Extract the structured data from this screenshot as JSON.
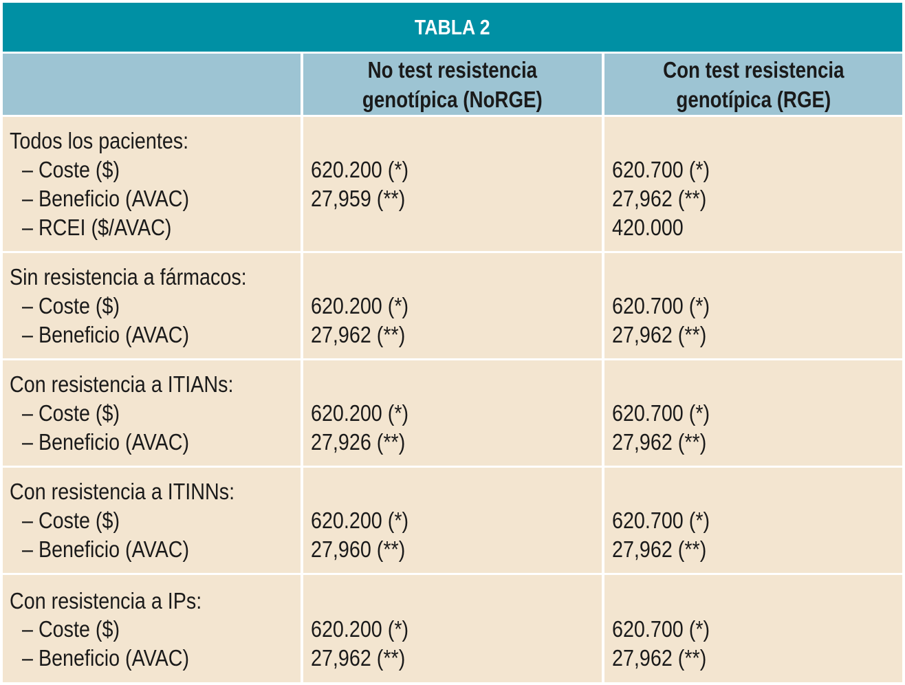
{
  "table": {
    "title": "TABLA 2",
    "headers": {
      "col0": "",
      "col1_line1": "No test resistencia",
      "col1_line2": "genotípica (NoRGE)",
      "col2_line1": "Con test resistencia",
      "col2_line2": "genotípica (RGE)"
    },
    "groups": [
      {
        "label": "Todos los pacientes:",
        "rows": [
          {
            "metric": "– Coste ($)",
            "norge": "620.200 (*)",
            "rge": "620.700 (*)"
          },
          {
            "metric": "– Beneficio (AVAC)",
            "norge": "27,959 (**)",
            "rge": "27,962 (**)"
          },
          {
            "metric": "– RCEI ($/AVAC)",
            "norge": "",
            "rge": "420.000"
          }
        ]
      },
      {
        "label": "Sin resistencia a fármacos:",
        "rows": [
          {
            "metric": "– Coste ($)",
            "norge": "620.200 (*)",
            "rge": "620.700 (*)"
          },
          {
            "metric": "– Beneficio (AVAC)",
            "norge": "27,962 (**)",
            "rge": "27,962 (**)"
          }
        ]
      },
      {
        "label": "Con resistencia a ITIANs:",
        "rows": [
          {
            "metric": "– Coste ($)",
            "norge": "620.200 (*)",
            "rge": "620.700 (*)"
          },
          {
            "metric": "– Beneficio (AVAC)",
            "norge": "27,926 (**)",
            "rge": "27,962 (**)"
          }
        ]
      },
      {
        "label": "Con resistencia a ITINNs:",
        "rows": [
          {
            "metric": "– Coste ($)",
            "norge": "620.200 (*)",
            "rge": "620.700 (*)"
          },
          {
            "metric": "– Beneficio (AVAC)",
            "norge": "27,960 (**)",
            "rge": "27,962 (**)"
          }
        ]
      },
      {
        "label": "Con resistencia a IPs:",
        "rows": [
          {
            "metric": "– Coste ($)",
            "norge": "620.200 (*)",
            "rge": "620.700 (*)"
          },
          {
            "metric": "– Beneficio (AVAC)",
            "norge": "27,962 (**)",
            "rge": "27,962 (**)"
          }
        ]
      }
    ],
    "colors": {
      "title_bg": "#0090a4",
      "header_bg": "#9dc4d3",
      "body_bg": "#f3e5d0",
      "grid": "#ffffff"
    }
  }
}
